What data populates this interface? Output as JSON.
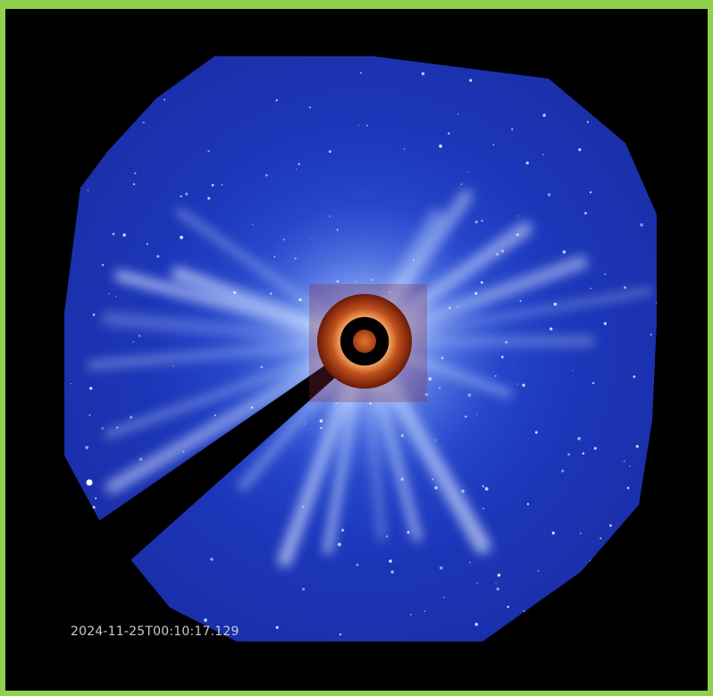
{
  "timestamp": "2024-11-25T00:10:17.129"
}
